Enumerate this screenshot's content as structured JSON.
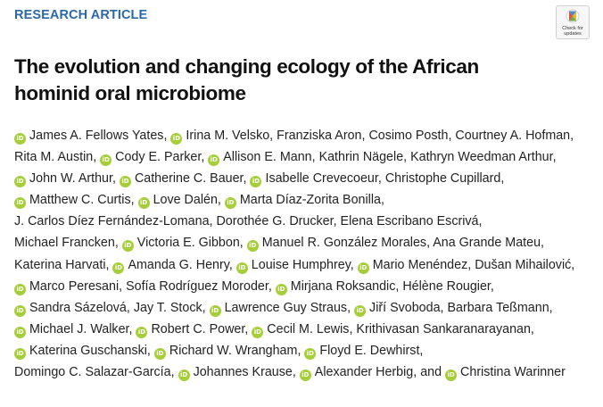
{
  "header": {
    "article_type": "RESEARCH ARTICLE",
    "badge_line1": "Check for",
    "badge_line2": "updates"
  },
  "title": {
    "line1": "The evolution and changing ecology of the African",
    "line2": "hominid oral microbiome"
  },
  "orcid_icon": "orcid-icon",
  "orcid_color": "#a6ce39",
  "accent_color": "#2a68a8",
  "authors": [
    {
      "name": "James A. Fellows Yates",
      "orcid": true
    },
    {
      "name": "Irina M. Velsko",
      "orcid": true
    },
    {
      "name": "Franziska Aron",
      "orcid": false
    },
    {
      "name": "Cosimo Posth",
      "orcid": false
    },
    {
      "name": "Courtney A. Hofman",
      "orcid": false
    },
    {
      "name": "Rita M. Austin",
      "orcid": false
    },
    {
      "name": "Cody E. Parker",
      "orcid": true
    },
    {
      "name": "Allison E. Mann",
      "orcid": true
    },
    {
      "name": "Kathrin Nägele",
      "orcid": false
    },
    {
      "name": "Kathryn Weedman Arthur",
      "orcid": false
    },
    {
      "name": "John W. Arthur",
      "orcid": true
    },
    {
      "name": "Catherine C. Bauer",
      "orcid": true
    },
    {
      "name": "Isabelle Crevecoeur",
      "orcid": true
    },
    {
      "name": "Christophe Cupillard",
      "orcid": false
    },
    {
      "name": "Matthew C. Curtis",
      "orcid": true
    },
    {
      "name": "Love Dalén",
      "orcid": true
    },
    {
      "name": "Marta Díaz-Zorita Bonilla",
      "orcid": true
    },
    {
      "name": "J. Carlos Díez Fernández-Lomana",
      "orcid": false
    },
    {
      "name": "Dorothée G. Drucker",
      "orcid": false
    },
    {
      "name": "Elena Escribano Escrivá",
      "orcid": false
    },
    {
      "name": "Michael Francken",
      "orcid": false
    },
    {
      "name": "Victoria E. Gibbon",
      "orcid": true
    },
    {
      "name": "Manuel R. González Morales",
      "orcid": true
    },
    {
      "name": "Ana Grande Mateu",
      "orcid": false
    },
    {
      "name": "Katerina Harvati",
      "orcid": false
    },
    {
      "name": "Amanda G. Henry",
      "orcid": true
    },
    {
      "name": "Louise Humphrey",
      "orcid": true
    },
    {
      "name": "Mario Menéndez",
      "orcid": true
    },
    {
      "name": "Dušan Mihailović",
      "orcid": false
    },
    {
      "name": "Marco Peresani",
      "orcid": true
    },
    {
      "name": "Sofía Rodríguez Moroder",
      "orcid": false
    },
    {
      "name": "Mirjana Roksandic",
      "orcid": true
    },
    {
      "name": "Hélène Rougier",
      "orcid": false
    },
    {
      "name": "Sandra Sázelová",
      "orcid": true
    },
    {
      "name": "Jay T. Stock",
      "orcid": false
    },
    {
      "name": "Lawrence Guy Straus",
      "orcid": true
    },
    {
      "name": "Jiří Svoboda",
      "orcid": true
    },
    {
      "name": "Barbara Teßmann",
      "orcid": false
    },
    {
      "name": "Michael J. Walker",
      "orcid": true
    },
    {
      "name": "Robert C. Power",
      "orcid": true
    },
    {
      "name": "Cecil M. Lewis",
      "orcid": true
    },
    {
      "name": "Krithivasan Sankaranarayanan",
      "orcid": false
    },
    {
      "name": "Katerina Guschanski",
      "orcid": true
    },
    {
      "name": "Richard W. Wrangham",
      "orcid": true
    },
    {
      "name": "Floyd E. Dewhirst",
      "orcid": true
    },
    {
      "name": "Domingo C. Salazar-García",
      "orcid": false
    },
    {
      "name": "Johannes Krause",
      "orcid": true
    },
    {
      "name": "Alexander Herbig",
      "orcid": true
    },
    {
      "name": "Christina Warinner",
      "orcid": true
    }
  ],
  "separator": ", ",
  "final_conjunction": ", and"
}
